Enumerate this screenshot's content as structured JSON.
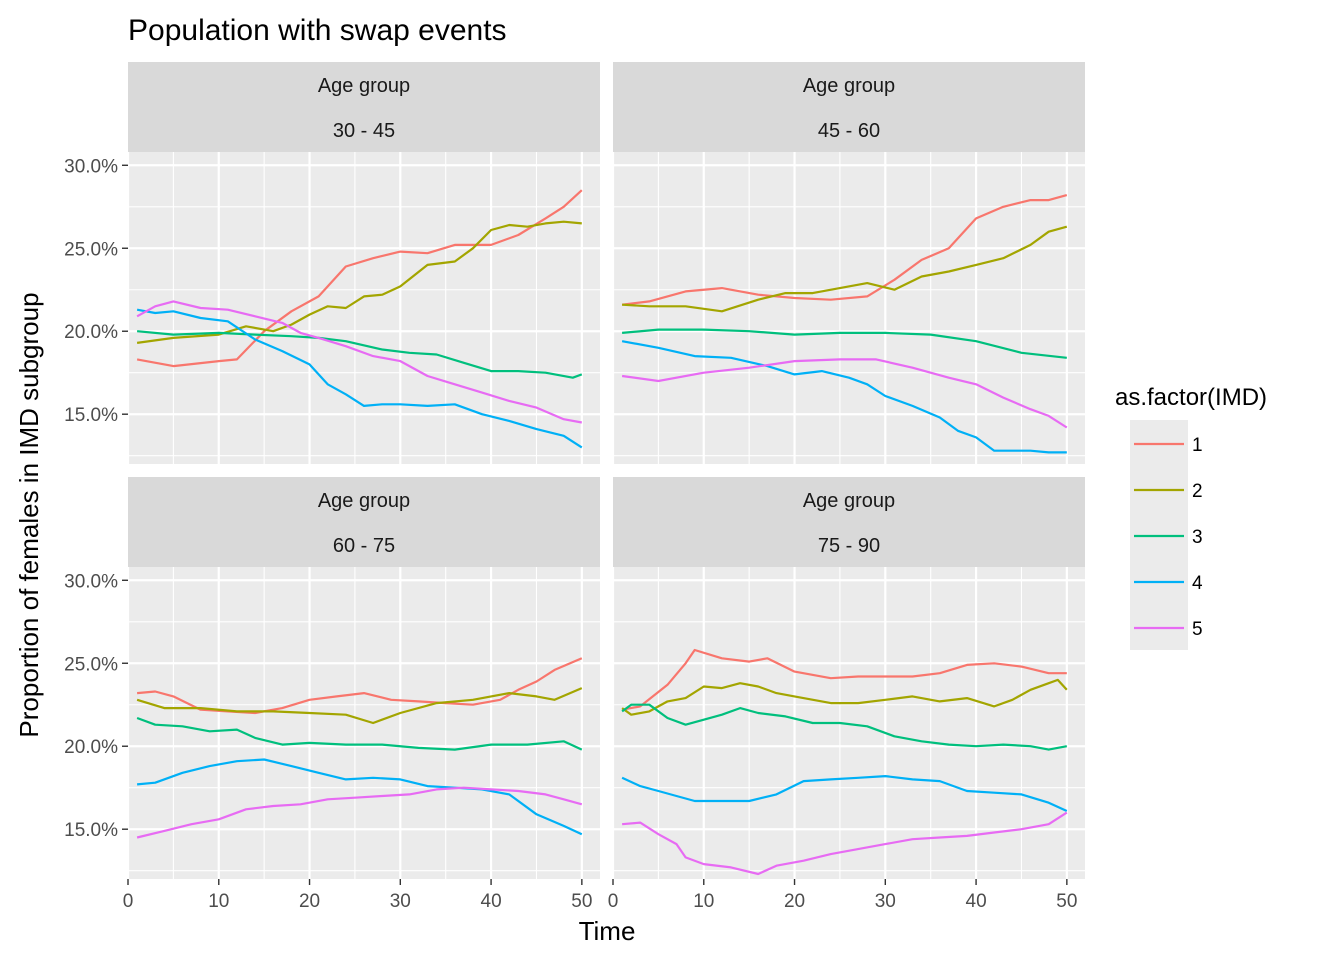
{
  "title": "Population with swap events",
  "xlabel": "Time",
  "ylabel": "Proportion of females in IMD subgroup",
  "legend_title": "as.factor(IMD)",
  "strip_top": "Age group",
  "colors": {
    "1": "#F8766D",
    "2": "#A3A500",
    "3": "#00BF7D",
    "4": "#00B0F6",
    "5": "#E76BF3"
  },
  "chart_data": {
    "type": "line",
    "facet_rows": 2,
    "facet_cols": 2,
    "xlim": [
      0,
      52
    ],
    "ylim": [
      12.0,
      30.8
    ],
    "x_ticks": [
      0,
      10,
      20,
      30,
      40,
      50
    ],
    "y_ticks": [
      15,
      20,
      25,
      30
    ],
    "y_tick_labels": [
      "15.0%",
      "20.0%",
      "25.0%",
      "30.0%"
    ],
    "legend_placement": "right",
    "grid": true,
    "series_names": [
      "1",
      "2",
      "3",
      "4",
      "5"
    ],
    "panels": [
      {
        "label": "30 - 45",
        "series": [
          {
            "name": "1",
            "x": [
              1,
              5,
              10,
              12,
              15,
              18,
              21,
              24,
              27,
              30,
              33,
              36,
              40,
              43,
              46,
              48,
              50
            ],
            "values": [
              18.3,
              17.9,
              18.2,
              18.3,
              20.0,
              21.2,
              22.1,
              23.9,
              24.4,
              24.8,
              24.7,
              25.2,
              25.2,
              25.8,
              26.8,
              27.5,
              28.5
            ]
          },
          {
            "name": "2",
            "x": [
              1,
              5,
              10,
              13,
              16,
              18,
              20,
              22,
              24,
              26,
              28,
              30,
              33,
              36,
              38,
              40,
              42,
              44,
              46,
              48,
              50
            ],
            "values": [
              19.3,
              19.6,
              19.8,
              20.3,
              20.0,
              20.4,
              21.0,
              21.5,
              21.4,
              22.1,
              22.2,
              22.7,
              24.0,
              24.2,
              25.0,
              26.1,
              26.4,
              26.3,
              26.5,
              26.6,
              26.5
            ]
          },
          {
            "name": "3",
            "x": [
              1,
              5,
              10,
              14,
              18,
              21,
              24,
              28,
              31,
              34,
              37,
              40,
              43,
              46,
              49,
              50
            ],
            "values": [
              20.0,
              19.8,
              19.9,
              19.8,
              19.7,
              19.6,
              19.4,
              18.9,
              18.7,
              18.6,
              18.1,
              17.6,
              17.6,
              17.5,
              17.2,
              17.4
            ]
          },
          {
            "name": "4",
            "x": [
              1,
              3,
              5,
              8,
              11,
              14,
              17,
              20,
              22,
              24,
              26,
              28,
              30,
              33,
              36,
              39,
              42,
              45,
              48,
              50
            ],
            "values": [
              21.3,
              21.1,
              21.2,
              20.8,
              20.6,
              19.5,
              18.8,
              18.0,
              16.8,
              16.2,
              15.5,
              15.6,
              15.6,
              15.5,
              15.6,
              15.0,
              14.6,
              14.1,
              13.7,
              13.0
            ]
          },
          {
            "name": "5",
            "x": [
              1,
              3,
              5,
              8,
              11,
              14,
              17,
              19,
              21,
              24,
              27,
              30,
              33,
              36,
              39,
              42,
              45,
              48,
              50
            ],
            "values": [
              20.9,
              21.5,
              21.8,
              21.4,
              21.3,
              20.9,
              20.5,
              19.9,
              19.6,
              19.1,
              18.5,
              18.2,
              17.3,
              16.8,
              16.3,
              15.8,
              15.4,
              14.7,
              14.5
            ]
          }
        ]
      },
      {
        "label": "45 - 60",
        "series": [
          {
            "name": "1",
            "x": [
              1,
              4,
              8,
              12,
              16,
              20,
              24,
              28,
              31,
              34,
              37,
              40,
              43,
              46,
              48,
              50
            ],
            "values": [
              21.6,
              21.8,
              22.4,
              22.6,
              22.2,
              22.0,
              21.9,
              22.1,
              23.1,
              24.3,
              25.0,
              26.8,
              27.5,
              27.9,
              27.9,
              28.2
            ]
          },
          {
            "name": "2",
            "x": [
              1,
              4,
              8,
              12,
              16,
              19,
              22,
              25,
              28,
              31,
              34,
              37,
              40,
              43,
              46,
              48,
              50
            ],
            "values": [
              21.6,
              21.5,
              21.5,
              21.2,
              21.9,
              22.3,
              22.3,
              22.6,
              22.9,
              22.5,
              23.3,
              23.6,
              24.0,
              24.4,
              25.2,
              26.0,
              26.3
            ]
          },
          {
            "name": "3",
            "x": [
              1,
              5,
              10,
              15,
              20,
              25,
              30,
              35,
              40,
              45,
              50
            ],
            "values": [
              19.9,
              20.1,
              20.1,
              20.0,
              19.8,
              19.9,
              19.9,
              19.8,
              19.4,
              18.7,
              18.4
            ]
          },
          {
            "name": "4",
            "x": [
              1,
              5,
              9,
              13,
              17,
              20,
              23,
              26,
              28,
              30,
              33,
              36,
              38,
              40,
              42,
              46,
              48,
              50
            ],
            "values": [
              19.4,
              19.0,
              18.5,
              18.4,
              17.9,
              17.4,
              17.6,
              17.2,
              16.8,
              16.1,
              15.5,
              14.8,
              14.0,
              13.6,
              12.8,
              12.8,
              12.7,
              12.7
            ]
          },
          {
            "name": "5",
            "x": [
              1,
              5,
              10,
              15,
              20,
              25,
              29,
              33,
              37,
              40,
              43,
              46,
              48,
              50
            ],
            "values": [
              17.3,
              17.0,
              17.5,
              17.8,
              18.2,
              18.3,
              18.3,
              17.8,
              17.2,
              16.8,
              16.0,
              15.3,
              14.9,
              14.2
            ]
          }
        ]
      },
      {
        "label": "60 - 75",
        "series": [
          {
            "name": "1",
            "x": [
              1,
              3,
              5,
              8,
              11,
              14,
              17,
              20,
              23,
              26,
              29,
              32,
              35,
              38,
              41,
              43,
              45,
              47,
              50
            ],
            "values": [
              23.2,
              23.3,
              23.0,
              22.2,
              22.1,
              22.0,
              22.3,
              22.8,
              23.0,
              23.2,
              22.8,
              22.7,
              22.6,
              22.5,
              22.8,
              23.4,
              23.9,
              24.6,
              25.3
            ]
          },
          {
            "name": "2",
            "x": [
              1,
              4,
              8,
              12,
              16,
              20,
              24,
              27,
              30,
              34,
              38,
              42,
              45,
              47,
              50
            ],
            "values": [
              22.8,
              22.3,
              22.3,
              22.1,
              22.1,
              22.0,
              21.9,
              21.4,
              22.0,
              22.6,
              22.8,
              23.2,
              23.0,
              22.8,
              23.5
            ]
          },
          {
            "name": "3",
            "x": [
              1,
              3,
              6,
              9,
              12,
              14,
              17,
              20,
              24,
              28,
              32,
              36,
              40,
              44,
              48,
              50
            ],
            "values": [
              21.7,
              21.3,
              21.2,
              20.9,
              21.0,
              20.5,
              20.1,
              20.2,
              20.1,
              20.1,
              19.9,
              19.8,
              20.1,
              20.1,
              20.3,
              19.8
            ]
          },
          {
            "name": "4",
            "x": [
              1,
              3,
              6,
              9,
              12,
              15,
              18,
              21,
              24,
              27,
              30,
              33,
              36,
              39,
              42,
              45,
              48,
              50
            ],
            "values": [
              17.7,
              17.8,
              18.4,
              18.8,
              19.1,
              19.2,
              18.8,
              18.4,
              18.0,
              18.1,
              18.0,
              17.6,
              17.5,
              17.4,
              17.1,
              15.9,
              15.2,
              14.7
            ]
          },
          {
            "name": "5",
            "x": [
              1,
              4,
              7,
              10,
              13,
              16,
              19,
              22,
              25,
              28,
              31,
              34,
              37,
              40,
              43,
              46,
              48,
              50
            ],
            "values": [
              14.5,
              14.9,
              15.3,
              15.6,
              16.2,
              16.4,
              16.5,
              16.8,
              16.9,
              17.0,
              17.1,
              17.4,
              17.5,
              17.4,
              17.3,
              17.1,
              16.8,
              16.5
            ]
          }
        ]
      },
      {
        "label": "75 - 90",
        "series": [
          {
            "name": "1",
            "x": [
              1,
              3,
              6,
              8,
              9,
              12,
              15,
              17,
              20,
              24,
              27,
              30,
              33,
              36,
              39,
              42,
              45,
              48,
              50
            ],
            "values": [
              22.2,
              22.4,
              23.7,
              25.0,
              25.8,
              25.3,
              25.1,
              25.3,
              24.5,
              24.1,
              24.2,
              24.2,
              24.2,
              24.4,
              24.9,
              25.0,
              24.8,
              24.4,
              24.4
            ]
          },
          {
            "name": "2",
            "x": [
              1,
              2,
              4,
              6,
              8,
              10,
              12,
              14,
              16,
              18,
              20,
              24,
              27,
              30,
              33,
              36,
              39,
              42,
              44,
              46,
              48,
              49,
              50
            ],
            "values": [
              22.3,
              21.9,
              22.1,
              22.7,
              22.9,
              23.6,
              23.5,
              23.8,
              23.6,
              23.2,
              23.0,
              22.6,
              22.6,
              22.8,
              23.0,
              22.7,
              22.9,
              22.4,
              22.8,
              23.4,
              23.8,
              24.0,
              23.4
            ]
          },
          {
            "name": "3",
            "x": [
              1,
              2,
              4,
              6,
              8,
              10,
              12,
              14,
              16,
              19,
              22,
              25,
              28,
              31,
              34,
              37,
              40,
              43,
              46,
              48,
              50
            ],
            "values": [
              22.1,
              22.5,
              22.5,
              21.7,
              21.3,
              21.6,
              21.9,
              22.3,
              22.0,
              21.8,
              21.4,
              21.4,
              21.2,
              20.6,
              20.3,
              20.1,
              20.0,
              20.1,
              20.0,
              19.8,
              20.0
            ]
          },
          {
            "name": "4",
            "x": [
              1,
              3,
              5,
              7,
              9,
              12,
              15,
              18,
              21,
              24,
              27,
              30,
              33,
              36,
              39,
              42,
              45,
              48,
              50
            ],
            "values": [
              18.1,
              17.6,
              17.3,
              17.0,
              16.7,
              16.7,
              16.7,
              17.1,
              17.9,
              18.0,
              18.1,
              18.2,
              18.0,
              17.9,
              17.3,
              17.2,
              17.1,
              16.6,
              16.1
            ]
          },
          {
            "name": "5",
            "x": [
              1,
              3,
              5,
              7,
              8,
              10,
              13,
              16,
              18,
              21,
              24,
              27,
              30,
              33,
              36,
              39,
              42,
              45,
              48,
              50
            ],
            "values": [
              15.3,
              15.4,
              14.7,
              14.1,
              13.3,
              12.9,
              12.7,
              12.3,
              12.8,
              13.1,
              13.5,
              13.8,
              14.1,
              14.4,
              14.5,
              14.6,
              14.8,
              15.0,
              15.3,
              16.0
            ]
          }
        ]
      }
    ]
  }
}
